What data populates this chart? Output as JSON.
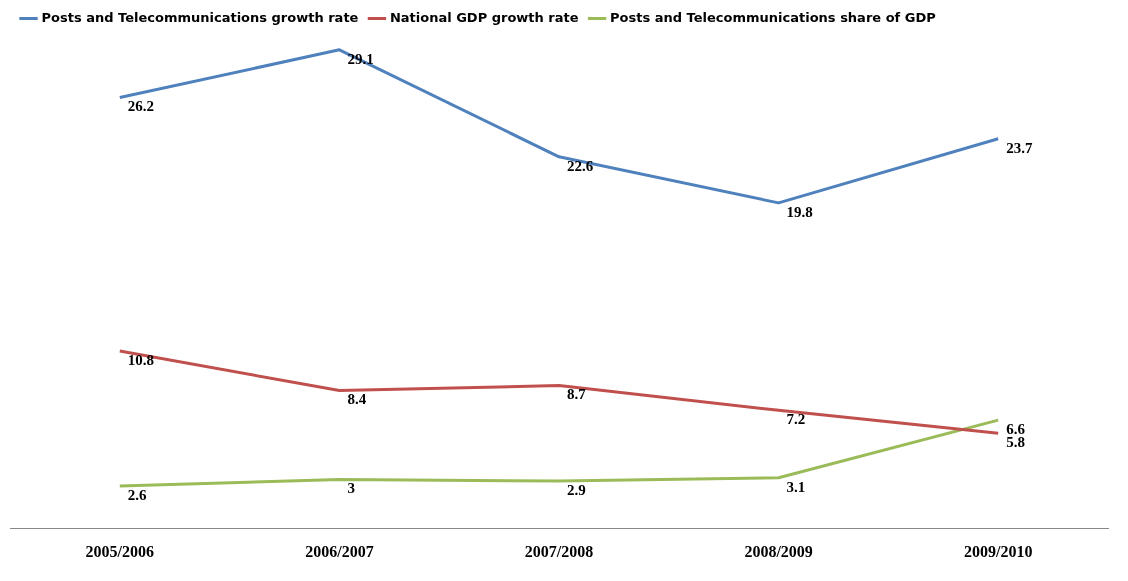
{
  "chart_data": {
    "type": "line",
    "categories": [
      "2005/2006",
      "2006/2007",
      "2007/2008",
      "2008/2009",
      "2009/2010"
    ],
    "series": [
      {
        "name": "Posts and Telecommunications growth rate",
        "color": "#4f81bd",
        "values": [
          26.2,
          29.1,
          22.6,
          19.8,
          23.7
        ]
      },
      {
        "name": "National GDP growth rate",
        "color": "#c0504d",
        "values": [
          10.8,
          8.4,
          8.7,
          7.2,
          5.8
        ]
      },
      {
        "name": "Posts and Telecommunications share of GDP",
        "color": "#9bbb59",
        "values": [
          2.6,
          3,
          2.9,
          3.1,
          6.6
        ]
      }
    ],
    "data_labels": true,
    "legend": "top left",
    "grid": false,
    "marker": "none"
  }
}
